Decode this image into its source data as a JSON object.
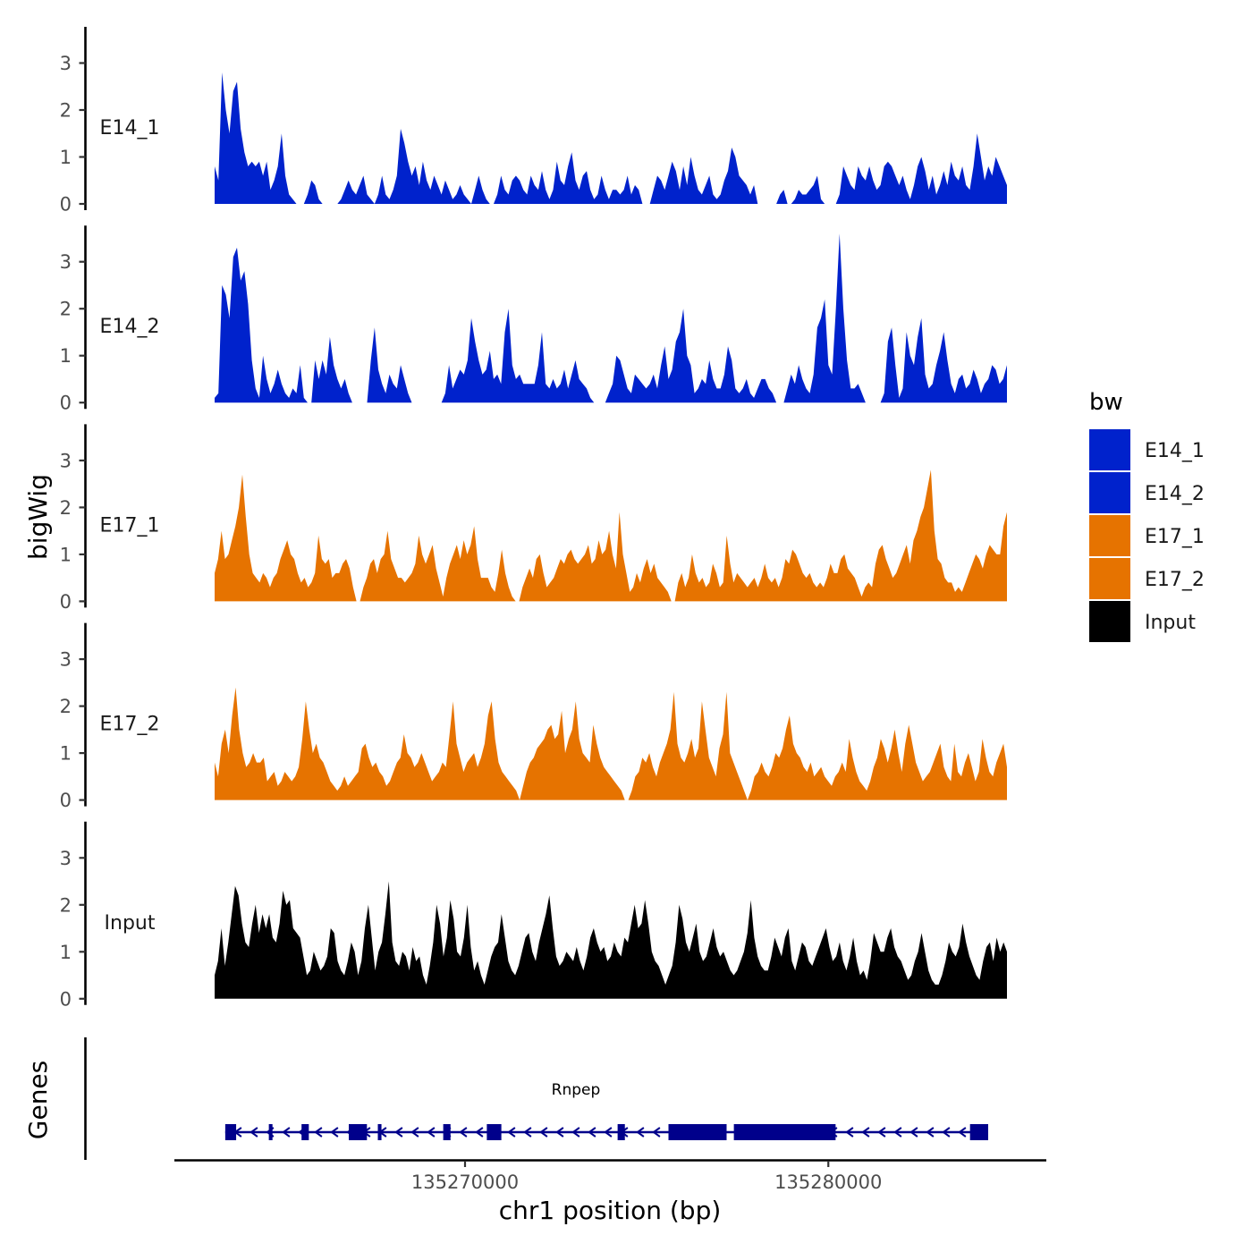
{
  "chart_data": {
    "type": "area",
    "title": "",
    "ylabel": "bigWig",
    "xlabel": "chr1 position (bp)",
    "xlim": [
      135262000,
      135286000
    ],
    "ylim": [
      0,
      3.7
    ],
    "y_ticks": [
      0,
      1,
      2,
      3
    ],
    "x_ticks": [
      135270000,
      135280000
    ],
    "x_tick_labels": [
      "135270000",
      "135280000"
    ],
    "legend_title": "bw",
    "legend_position": "right",
    "tracks": [
      {
        "name": "E14_1",
        "color": "#0022CC",
        "values": [
          0.8,
          0.5,
          2.8,
          2.0,
          1.5,
          2.4,
          2.6,
          1.6,
          1.1,
          0.8,
          0.9,
          0.8,
          0.9,
          0.6,
          0.9,
          0.3,
          0.5,
          0.8,
          1.5,
          0.6,
          0.2,
          0.1,
          0.0,
          0.0,
          0.0,
          0.2,
          0.5,
          0.4,
          0.1,
          0.0,
          0.0,
          0.0,
          0.0,
          0.0,
          0.1,
          0.3,
          0.5,
          0.3,
          0.2,
          0.4,
          0.6,
          0.2,
          0.1,
          0.0,
          0.2,
          0.6,
          0.2,
          0.1,
          0.3,
          0.6,
          1.6,
          1.3,
          0.9,
          0.6,
          0.8,
          0.4,
          0.9,
          0.5,
          0.3,
          0.6,
          0.4,
          0.2,
          0.5,
          0.3,
          0.1,
          0.2,
          0.4,
          0.2,
          0.1,
          0.0,
          0.3,
          0.6,
          0.3,
          0.1,
          0.0,
          0.0,
          0.2,
          0.6,
          0.3,
          0.2,
          0.5,
          0.6,
          0.5,
          0.3,
          0.2,
          0.6,
          0.4,
          0.3,
          0.7,
          0.3,
          0.1,
          0.3,
          0.9,
          0.5,
          0.4,
          0.8,
          1.1,
          0.5,
          0.3,
          0.6,
          0.7,
          0.3,
          0.1,
          0.2,
          0.6,
          0.3,
          0.1,
          0.3,
          0.3,
          0.2,
          0.3,
          0.6,
          0.2,
          0.4,
          0.3,
          0.0,
          0.0,
          0.0,
          0.3,
          0.6,
          0.5,
          0.3,
          0.6,
          0.9,
          0.7,
          0.3,
          0.8,
          0.4,
          1.0,
          0.6,
          0.3,
          0.2,
          0.4,
          0.6,
          0.2,
          0.1,
          0.2,
          0.5,
          0.7,
          1.2,
          1.0,
          0.6,
          0.5,
          0.4,
          0.2,
          0.4,
          0.0,
          0.0,
          0.0,
          0.0,
          0.0,
          0.0,
          0.2,
          0.3,
          0.0,
          0.0,
          0.1,
          0.3,
          0.2,
          0.2,
          0.3,
          0.4,
          0.6,
          0.1,
          0.0,
          0.0,
          0.0,
          0.0,
          0.2,
          0.8,
          0.6,
          0.4,
          0.3,
          0.8,
          0.6,
          0.5,
          0.8,
          0.5,
          0.3,
          0.4,
          0.8,
          0.9,
          0.8,
          0.6,
          0.4,
          0.6,
          0.3,
          0.1,
          0.4,
          0.8,
          1.0,
          0.7,
          0.3,
          0.6,
          0.2,
          0.4,
          0.7,
          0.4,
          0.9,
          0.6,
          0.5,
          0.8,
          0.4,
          0.3,
          0.8,
          1.5,
          1.0,
          0.5,
          0.8,
          0.6,
          1.0,
          0.8,
          0.6,
          0.4
        ]
      },
      {
        "name": "E14_2",
        "color": "#0022CC",
        "values": [
          0.1,
          0.2,
          2.5,
          2.3,
          1.8,
          3.1,
          3.3,
          2.6,
          2.8,
          2.1,
          0.9,
          0.3,
          0.1,
          1.0,
          0.5,
          0.2,
          0.4,
          0.7,
          0.4,
          0.2,
          0.1,
          0.3,
          0.2,
          0.8,
          0.1,
          0.0,
          0.0,
          0.9,
          0.5,
          0.9,
          0.6,
          1.4,
          0.8,
          0.5,
          0.3,
          0.5,
          0.2,
          0.0,
          0.0,
          0.0,
          0.0,
          0.0,
          0.9,
          1.6,
          0.7,
          0.4,
          0.2,
          0.6,
          0.4,
          0.3,
          0.8,
          0.5,
          0.2,
          0.0,
          0.0,
          0.0,
          0.0,
          0.0,
          0.0,
          0.0,
          0.0,
          0.0,
          0.2,
          0.8,
          0.3,
          0.5,
          0.7,
          0.6,
          0.9,
          1.8,
          1.3,
          0.9,
          0.6,
          0.7,
          1.1,
          0.5,
          0.6,
          0.4,
          1.5,
          2.0,
          0.8,
          0.5,
          0.6,
          0.4,
          0.4,
          0.4,
          0.4,
          0.8,
          1.5,
          0.4,
          0.3,
          0.5,
          0.3,
          0.4,
          0.7,
          0.3,
          0.6,
          0.9,
          0.5,
          0.4,
          0.3,
          0.1,
          0.0,
          0.0,
          0.0,
          0.0,
          0.2,
          0.4,
          1.0,
          0.9,
          0.6,
          0.3,
          0.2,
          0.6,
          0.5,
          0.4,
          0.3,
          0.4,
          0.6,
          0.3,
          0.8,
          1.2,
          0.5,
          0.7,
          1.3,
          1.5,
          2.0,
          1.0,
          0.8,
          0.2,
          0.3,
          0.5,
          0.4,
          0.9,
          0.5,
          0.3,
          0.3,
          0.6,
          1.2,
          0.9,
          0.3,
          0.2,
          0.3,
          0.5,
          0.2,
          0.1,
          0.3,
          0.5,
          0.5,
          0.3,
          0.2,
          0.0,
          0.0,
          0.0,
          0.3,
          0.6,
          0.4,
          0.8,
          0.5,
          0.3,
          0.2,
          0.6,
          1.6,
          1.8,
          2.2,
          0.8,
          0.6,
          2.0,
          3.6,
          2.0,
          0.9,
          0.3,
          0.3,
          0.4,
          0.2,
          0.0,
          0.0,
          0.0,
          0.0,
          0.0,
          0.2,
          1.3,
          1.6,
          0.8,
          0.1,
          0.3,
          1.5,
          1.0,
          0.8,
          1.4,
          1.8,
          0.6,
          0.3,
          0.4,
          0.8,
          1.1,
          1.5,
          0.9,
          0.4,
          0.2,
          0.5,
          0.6,
          0.3,
          0.4,
          0.7,
          0.5,
          0.2,
          0.4,
          0.5,
          0.8,
          0.7,
          0.4,
          0.5,
          0.8
        ]
      },
      {
        "name": "E17_1",
        "color": "#E67300",
        "values": [
          0.6,
          0.9,
          1.5,
          0.9,
          1.0,
          1.3,
          1.6,
          2.0,
          2.7,
          1.8,
          1.0,
          0.6,
          0.5,
          0.4,
          0.6,
          0.5,
          0.3,
          0.5,
          0.6,
          0.9,
          1.1,
          1.3,
          1.0,
          0.9,
          0.6,
          0.4,
          0.5,
          0.3,
          0.4,
          0.6,
          1.4,
          0.9,
          0.8,
          0.9,
          0.5,
          0.6,
          0.6,
          0.8,
          0.9,
          0.7,
          0.3,
          0.0,
          0.0,
          0.3,
          0.5,
          0.8,
          0.9,
          0.6,
          0.9,
          1.0,
          1.5,
          0.9,
          0.7,
          0.5,
          0.5,
          0.4,
          0.5,
          0.6,
          0.8,
          1.4,
          1.0,
          0.8,
          1.0,
          1.2,
          0.7,
          0.4,
          0.1,
          0.5,
          0.8,
          1.0,
          1.2,
          0.9,
          1.3,
          1.0,
          1.2,
          1.6,
          0.9,
          0.5,
          0.5,
          0.5,
          0.3,
          0.2,
          0.6,
          1.1,
          0.6,
          0.3,
          0.1,
          0.0,
          0.0,
          0.3,
          0.5,
          0.7,
          0.5,
          0.9,
          1.0,
          0.6,
          0.3,
          0.4,
          0.5,
          0.7,
          0.9,
          0.8,
          1.0,
          1.1,
          0.9,
          0.8,
          0.9,
          1.0,
          1.2,
          0.8,
          0.9,
          1.3,
          1.0,
          1.1,
          1.5,
          1.0,
          0.7,
          1.9,
          1.0,
          0.6,
          0.2,
          0.3,
          0.6,
          0.4,
          0.7,
          0.9,
          0.6,
          0.8,
          0.5,
          0.4,
          0.3,
          0.2,
          0.0,
          0.0,
          0.4,
          0.6,
          0.3,
          0.5,
          1.0,
          0.6,
          0.4,
          0.5,
          0.3,
          0.4,
          0.8,
          0.6,
          0.3,
          0.4,
          1.4,
          0.8,
          0.4,
          0.6,
          0.5,
          0.4,
          0.3,
          0.4,
          0.5,
          0.3,
          0.5,
          0.8,
          0.5,
          0.4,
          0.5,
          0.3,
          0.5,
          0.9,
          0.8,
          1.1,
          1.0,
          0.8,
          0.6,
          0.5,
          0.6,
          0.4,
          0.3,
          0.4,
          0.3,
          0.5,
          0.8,
          0.6,
          0.6,
          0.9,
          1.0,
          0.7,
          0.6,
          0.5,
          0.3,
          0.1,
          0.3,
          0.4,
          0.3,
          0.8,
          1.1,
          1.2,
          0.9,
          0.7,
          0.5,
          0.6,
          0.8,
          1.0,
          1.2,
          0.8,
          1.3,
          1.5,
          1.8,
          2.0,
          2.4,
          2.8,
          1.5,
          0.9,
          0.8,
          0.5,
          0.4,
          0.4,
          0.2,
          0.3,
          0.2,
          0.4,
          0.6,
          0.8,
          1.0,
          0.9,
          0.7,
          1.0,
          1.2,
          1.1,
          1.0,
          1.0,
          1.6,
          1.9
        ]
      },
      {
        "name": "E17_2",
        "color": "#E67300",
        "values": [
          0.8,
          0.5,
          1.2,
          1.5,
          1.0,
          1.8,
          2.4,
          1.5,
          1.0,
          0.7,
          0.8,
          1.0,
          0.8,
          0.8,
          0.9,
          0.4,
          0.5,
          0.6,
          0.3,
          0.4,
          0.6,
          0.5,
          0.4,
          0.5,
          0.7,
          1.3,
          2.1,
          1.5,
          1.0,
          1.2,
          0.9,
          0.8,
          0.6,
          0.4,
          0.3,
          0.2,
          0.3,
          0.5,
          0.3,
          0.4,
          0.5,
          0.6,
          1.1,
          1.2,
          0.9,
          0.7,
          0.8,
          0.6,
          0.5,
          0.3,
          0.4,
          0.6,
          0.8,
          0.9,
          1.4,
          1.0,
          0.9,
          0.7,
          0.8,
          1.0,
          0.8,
          0.6,
          0.4,
          0.5,
          0.6,
          0.8,
          0.7,
          1.4,
          2.1,
          1.2,
          0.9,
          0.6,
          0.8,
          0.9,
          1.0,
          0.7,
          0.9,
          1.2,
          1.8,
          2.1,
          1.3,
          0.8,
          0.6,
          0.5,
          0.4,
          0.3,
          0.2,
          0.0,
          0.3,
          0.6,
          0.8,
          0.9,
          1.1,
          1.2,
          1.3,
          1.5,
          1.6,
          1.3,
          1.4,
          1.9,
          1.0,
          1.3,
          1.5,
          2.1,
          1.3,
          1.0,
          0.9,
          0.8,
          1.6,
          1.2,
          0.9,
          0.7,
          0.6,
          0.5,
          0.4,
          0.3,
          0.2,
          0.0,
          0.0,
          0.2,
          0.5,
          0.6,
          0.9,
          0.8,
          1.0,
          0.7,
          0.5,
          0.8,
          1.0,
          1.2,
          1.5,
          2.3,
          1.2,
          0.9,
          0.8,
          1.0,
          1.3,
          0.9,
          1.1,
          2.1,
          1.5,
          0.9,
          0.7,
          0.5,
          1.1,
          1.4,
          2.3,
          1.0,
          0.8,
          0.6,
          0.4,
          0.2,
          0.0,
          0.2,
          0.5,
          0.6,
          0.8,
          0.6,
          0.5,
          0.7,
          1.0,
          0.9,
          1.1,
          1.5,
          1.8,
          1.2,
          1.0,
          0.9,
          0.7,
          0.6,
          0.8,
          0.5,
          0.6,
          0.7,
          0.5,
          0.4,
          0.3,
          0.5,
          0.6,
          0.8,
          0.6,
          1.3,
          0.9,
          0.6,
          0.4,
          0.3,
          0.2,
          0.4,
          0.7,
          0.9,
          1.3,
          1.1,
          0.8,
          1.1,
          1.5,
          1.0,
          0.6,
          1.2,
          1.6,
          1.2,
          0.8,
          0.6,
          0.4,
          0.5,
          0.6,
          0.8,
          1.0,
          1.2,
          0.7,
          0.5,
          0.4,
          1.2,
          0.6,
          0.5,
          0.8,
          1.0,
          0.7,
          0.4,
          0.6,
          1.3,
          0.9,
          0.6,
          0.5,
          0.8,
          1.0,
          1.2,
          0.7
        ]
      },
      {
        "name": "Input",
        "color": "#000000",
        "values": [
          0.5,
          0.8,
          1.5,
          0.7,
          1.2,
          1.8,
          2.4,
          2.2,
          1.6,
          1.2,
          1.1,
          1.6,
          2.0,
          1.4,
          1.8,
          1.5,
          1.8,
          1.3,
          1.2,
          1.6,
          2.3,
          2.0,
          2.1,
          1.5,
          1.4,
          1.3,
          0.9,
          0.5,
          0.6,
          1.0,
          0.8,
          0.6,
          0.7,
          0.9,
          1.5,
          1.4,
          0.8,
          0.6,
          0.5,
          0.8,
          1.2,
          1.0,
          0.5,
          0.8,
          1.5,
          2.0,
          1.3,
          0.6,
          1.0,
          1.2,
          1.8,
          2.5,
          1.2,
          0.8,
          0.7,
          1.0,
          0.9,
          0.6,
          1.1,
          0.8,
          0.9,
          0.5,
          0.3,
          0.7,
          1.2,
          2.0,
          1.6,
          0.9,
          1.3,
          2.1,
          1.7,
          1.0,
          0.9,
          1.3,
          2.0,
          1.1,
          0.6,
          0.8,
          0.5,
          0.3,
          0.6,
          0.9,
          1.1,
          1.2,
          1.8,
          1.3,
          0.8,
          0.6,
          0.5,
          0.7,
          1.0,
          1.3,
          1.4,
          1.0,
          0.8,
          1.2,
          1.5,
          1.8,
          2.2,
          1.5,
          0.9,
          0.7,
          0.8,
          1.0,
          0.9,
          0.8,
          1.1,
          0.8,
          0.6,
          0.9,
          1.3,
          1.5,
          1.2,
          1.0,
          1.1,
          0.8,
          0.9,
          1.2,
          1.0,
          0.9,
          1.3,
          1.2,
          1.6,
          2.0,
          1.5,
          1.6,
          2.1,
          1.6,
          1.0,
          0.8,
          0.7,
          0.5,
          0.3,
          0.5,
          0.7,
          1.2,
          2.0,
          1.7,
          1.2,
          1.0,
          1.3,
          1.6,
          1.0,
          0.8,
          0.9,
          1.2,
          1.5,
          1.1,
          0.9,
          1.0,
          0.8,
          0.6,
          0.5,
          0.6,
          0.8,
          1.0,
          1.4,
          2.1,
          1.3,
          0.9,
          0.7,
          0.6,
          0.6,
          0.9,
          1.3,
          1.1,
          0.9,
          1.3,
          1.5,
          0.8,
          0.6,
          0.9,
          1.2,
          1.1,
          0.8,
          0.7,
          0.9,
          1.1,
          1.3,
          1.5,
          1.1,
          0.8,
          0.9,
          1.2,
          0.8,
          0.6,
          0.9,
          1.3,
          0.8,
          0.5,
          0.6,
          0.4,
          0.8,
          1.4,
          1.2,
          1.0,
          1.0,
          1.3,
          1.5,
          1.1,
          0.9,
          0.8,
          0.6,
          0.4,
          0.5,
          0.8,
          1.0,
          1.4,
          1.0,
          0.6,
          0.4,
          0.3,
          0.3,
          0.5,
          0.8,
          1.2,
          1.0,
          0.9,
          1.1,
          1.6,
          1.2,
          0.9,
          0.7,
          0.5,
          0.4,
          0.8,
          1.1,
          1.2,
          0.8,
          1.3,
          1.0,
          1.2,
          1.0
        ]
      }
    ],
    "gene_track": {
      "label": "Genes",
      "gene_name": "Rnpep",
      "color": "#00008B",
      "strand": "-",
      "start": 135263400,
      "end": 135284400,
      "exons": [
        [
          135263400,
          135263700
        ],
        [
          135264600,
          135264700
        ],
        [
          135265500,
          135265700
        ],
        [
          135266800,
          135267300
        ],
        [
          135267600,
          135267700
        ],
        [
          135269400,
          135269600
        ],
        [
          135270600,
          135271000
        ],
        [
          135274200,
          135274400
        ],
        [
          135275600,
          135277200
        ],
        [
          135277400,
          135279600
        ],
        [
          135279600,
          135280200
        ],
        [
          135283900,
          135284400
        ]
      ]
    }
  }
}
